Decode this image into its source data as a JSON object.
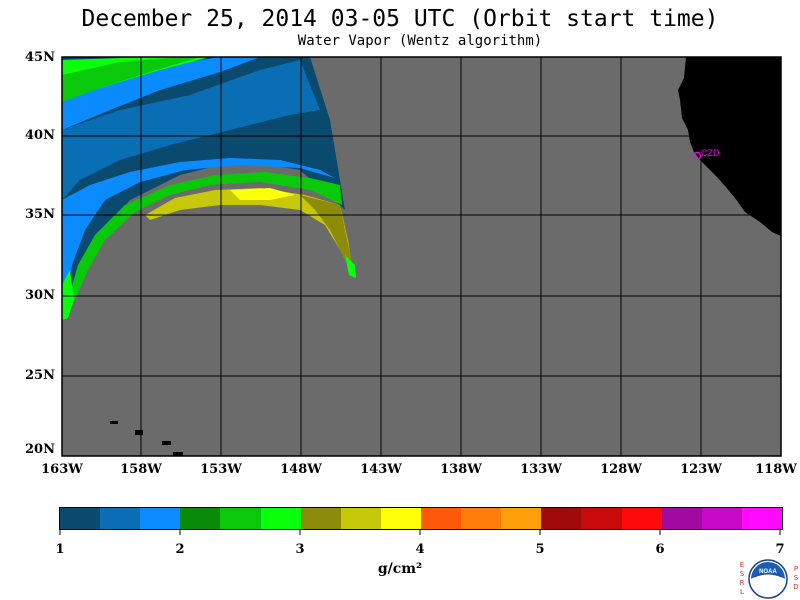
{
  "title": "December 25, 2014  03-05 UTC  (Orbit start time)",
  "subtitle": "Water Vapor (Wentz algorithm)",
  "lat_labels": [
    "45N",
    "40N",
    "35N",
    "30N",
    "25N",
    "20N"
  ],
  "lon_labels": [
    "163W",
    "158W",
    "153W",
    "148W",
    "143W",
    "138W",
    "133W",
    "128W",
    "123W",
    "118W"
  ],
  "station_label": "CZD",
  "colorbar": {
    "colors": [
      "#0a4a6e",
      "#0a6eb4",
      "#0a8cff",
      "#0a8c0a",
      "#0ac80a",
      "#0aff0a",
      "#8c8c0a",
      "#c8c80a",
      "#ffff0a",
      "#ff5a0a",
      "#ff7d0a",
      "#ffa00a",
      "#a00a0a",
      "#c80a0a",
      "#ff0a0a",
      "#a00aa0",
      "#c80ac8",
      "#ff0aff"
    ],
    "tick_labels": [
      "1",
      "2",
      "3",
      "4",
      "5",
      "6",
      "7"
    ],
    "unit": "g/cm²"
  },
  "colors": {
    "ocean_no_data": "#6b6b6b",
    "land": "#000000",
    "grid": "#000000",
    "station": "#ff00ff"
  },
  "logo": {
    "left_letters": "ESRL",
    "right_letters": "PSD",
    "text": "NOAA"
  }
}
